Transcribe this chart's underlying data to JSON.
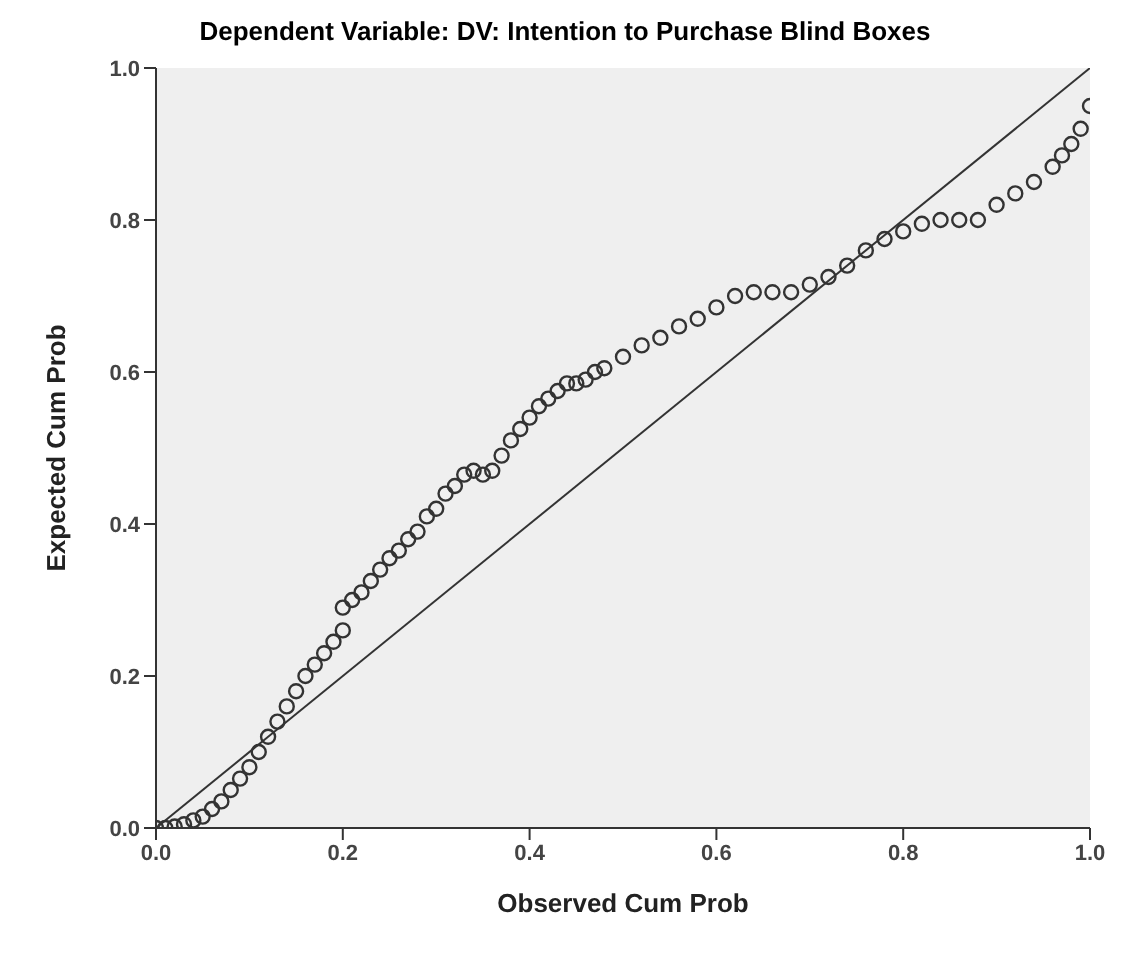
{
  "chart_data": {
    "type": "scatter",
    "title": "Dependent Variable: DV: Intention to Purchase Blind Boxes",
    "xlabel": "Observed Cum Prob",
    "ylabel": "Expected Cum Prob",
    "xlim": [
      0,
      1
    ],
    "ylim": [
      0,
      1
    ],
    "xticks": [
      {
        "value": 0,
        "label": "0.0"
      },
      {
        "value": 0.2,
        "label": "0.2"
      },
      {
        "value": 0.4,
        "label": "0.4"
      },
      {
        "value": 0.6,
        "label": "0.6"
      },
      {
        "value": 0.8,
        "label": "0.8"
      },
      {
        "value": 1,
        "label": "1.0"
      }
    ],
    "yticks": [
      {
        "value": 0,
        "label": "0.0"
      },
      {
        "value": 0.2,
        "label": "0.2"
      },
      {
        "value": 0.4,
        "label": "0.4"
      },
      {
        "value": 0.6,
        "label": "0.6"
      },
      {
        "value": 0.8,
        "label": "0.8"
      },
      {
        "value": 1,
        "label": "1.0"
      }
    ],
    "grid": false,
    "marker": "circle",
    "series": [
      {
        "color": "#333333",
        "x": [
          0,
          0.01,
          0.02,
          0.03,
          0.04,
          0.05,
          0.06,
          0.07,
          0.08,
          0.09,
          0.1,
          0.11,
          0.12,
          0.13,
          0.14,
          0.15,
          0.16,
          0.17,
          0.18,
          0.19,
          0.2,
          0.2,
          0.21,
          0.22,
          0.23,
          0.24,
          0.25,
          0.26,
          0.27,
          0.28,
          0.29,
          0.3,
          0.31,
          0.32,
          0.33,
          0.34,
          0.35,
          0.36,
          0.37,
          0.38,
          0.39,
          0.4,
          0.41,
          0.42,
          0.43,
          0.44,
          0.45,
          0.46,
          0.47,
          0.48,
          0.5,
          0.52,
          0.54,
          0.56,
          0.58,
          0.6,
          0.62,
          0.64,
          0.66,
          0.68,
          0.7,
          0.72,
          0.74,
          0.76,
          0.78,
          0.8,
          0.82,
          0.84,
          0.86,
          0.88,
          0.9,
          0.92,
          0.94,
          0.96,
          0.97,
          0.98,
          0.99,
          1
        ],
        "values": [
          0,
          0,
          0.002,
          0.005,
          0.01,
          0.015,
          0.025,
          0.035,
          0.05,
          0.065,
          0.08,
          0.1,
          0.12,
          0.14,
          0.16,
          0.18,
          0.2,
          0.215,
          0.23,
          0.245,
          0.26,
          0.29,
          0.3,
          0.31,
          0.325,
          0.34,
          0.355,
          0.365,
          0.38,
          0.39,
          0.41,
          0.42,
          0.44,
          0.45,
          0.465,
          0.47,
          0.465,
          0.47,
          0.49,
          0.51,
          0.525,
          0.54,
          0.555,
          0.565,
          0.575,
          0.585,
          0.585,
          0.59,
          0.6,
          0.605,
          0.62,
          0.635,
          0.645,
          0.66,
          0.67,
          0.685,
          0.7,
          0.705,
          0.705,
          0.705,
          0.715,
          0.725,
          0.74,
          0.76,
          0.775,
          0.785,
          0.795,
          0.8,
          0.8,
          0.8,
          0.82,
          0.835,
          0.85,
          0.87,
          0.885,
          0.9,
          0.92,
          0.95
        ]
      },
      {
        "type": "line",
        "color": "#333333",
        "marker": "none",
        "x": [
          0,
          1
        ],
        "values": [
          0,
          1
        ]
      }
    ]
  }
}
